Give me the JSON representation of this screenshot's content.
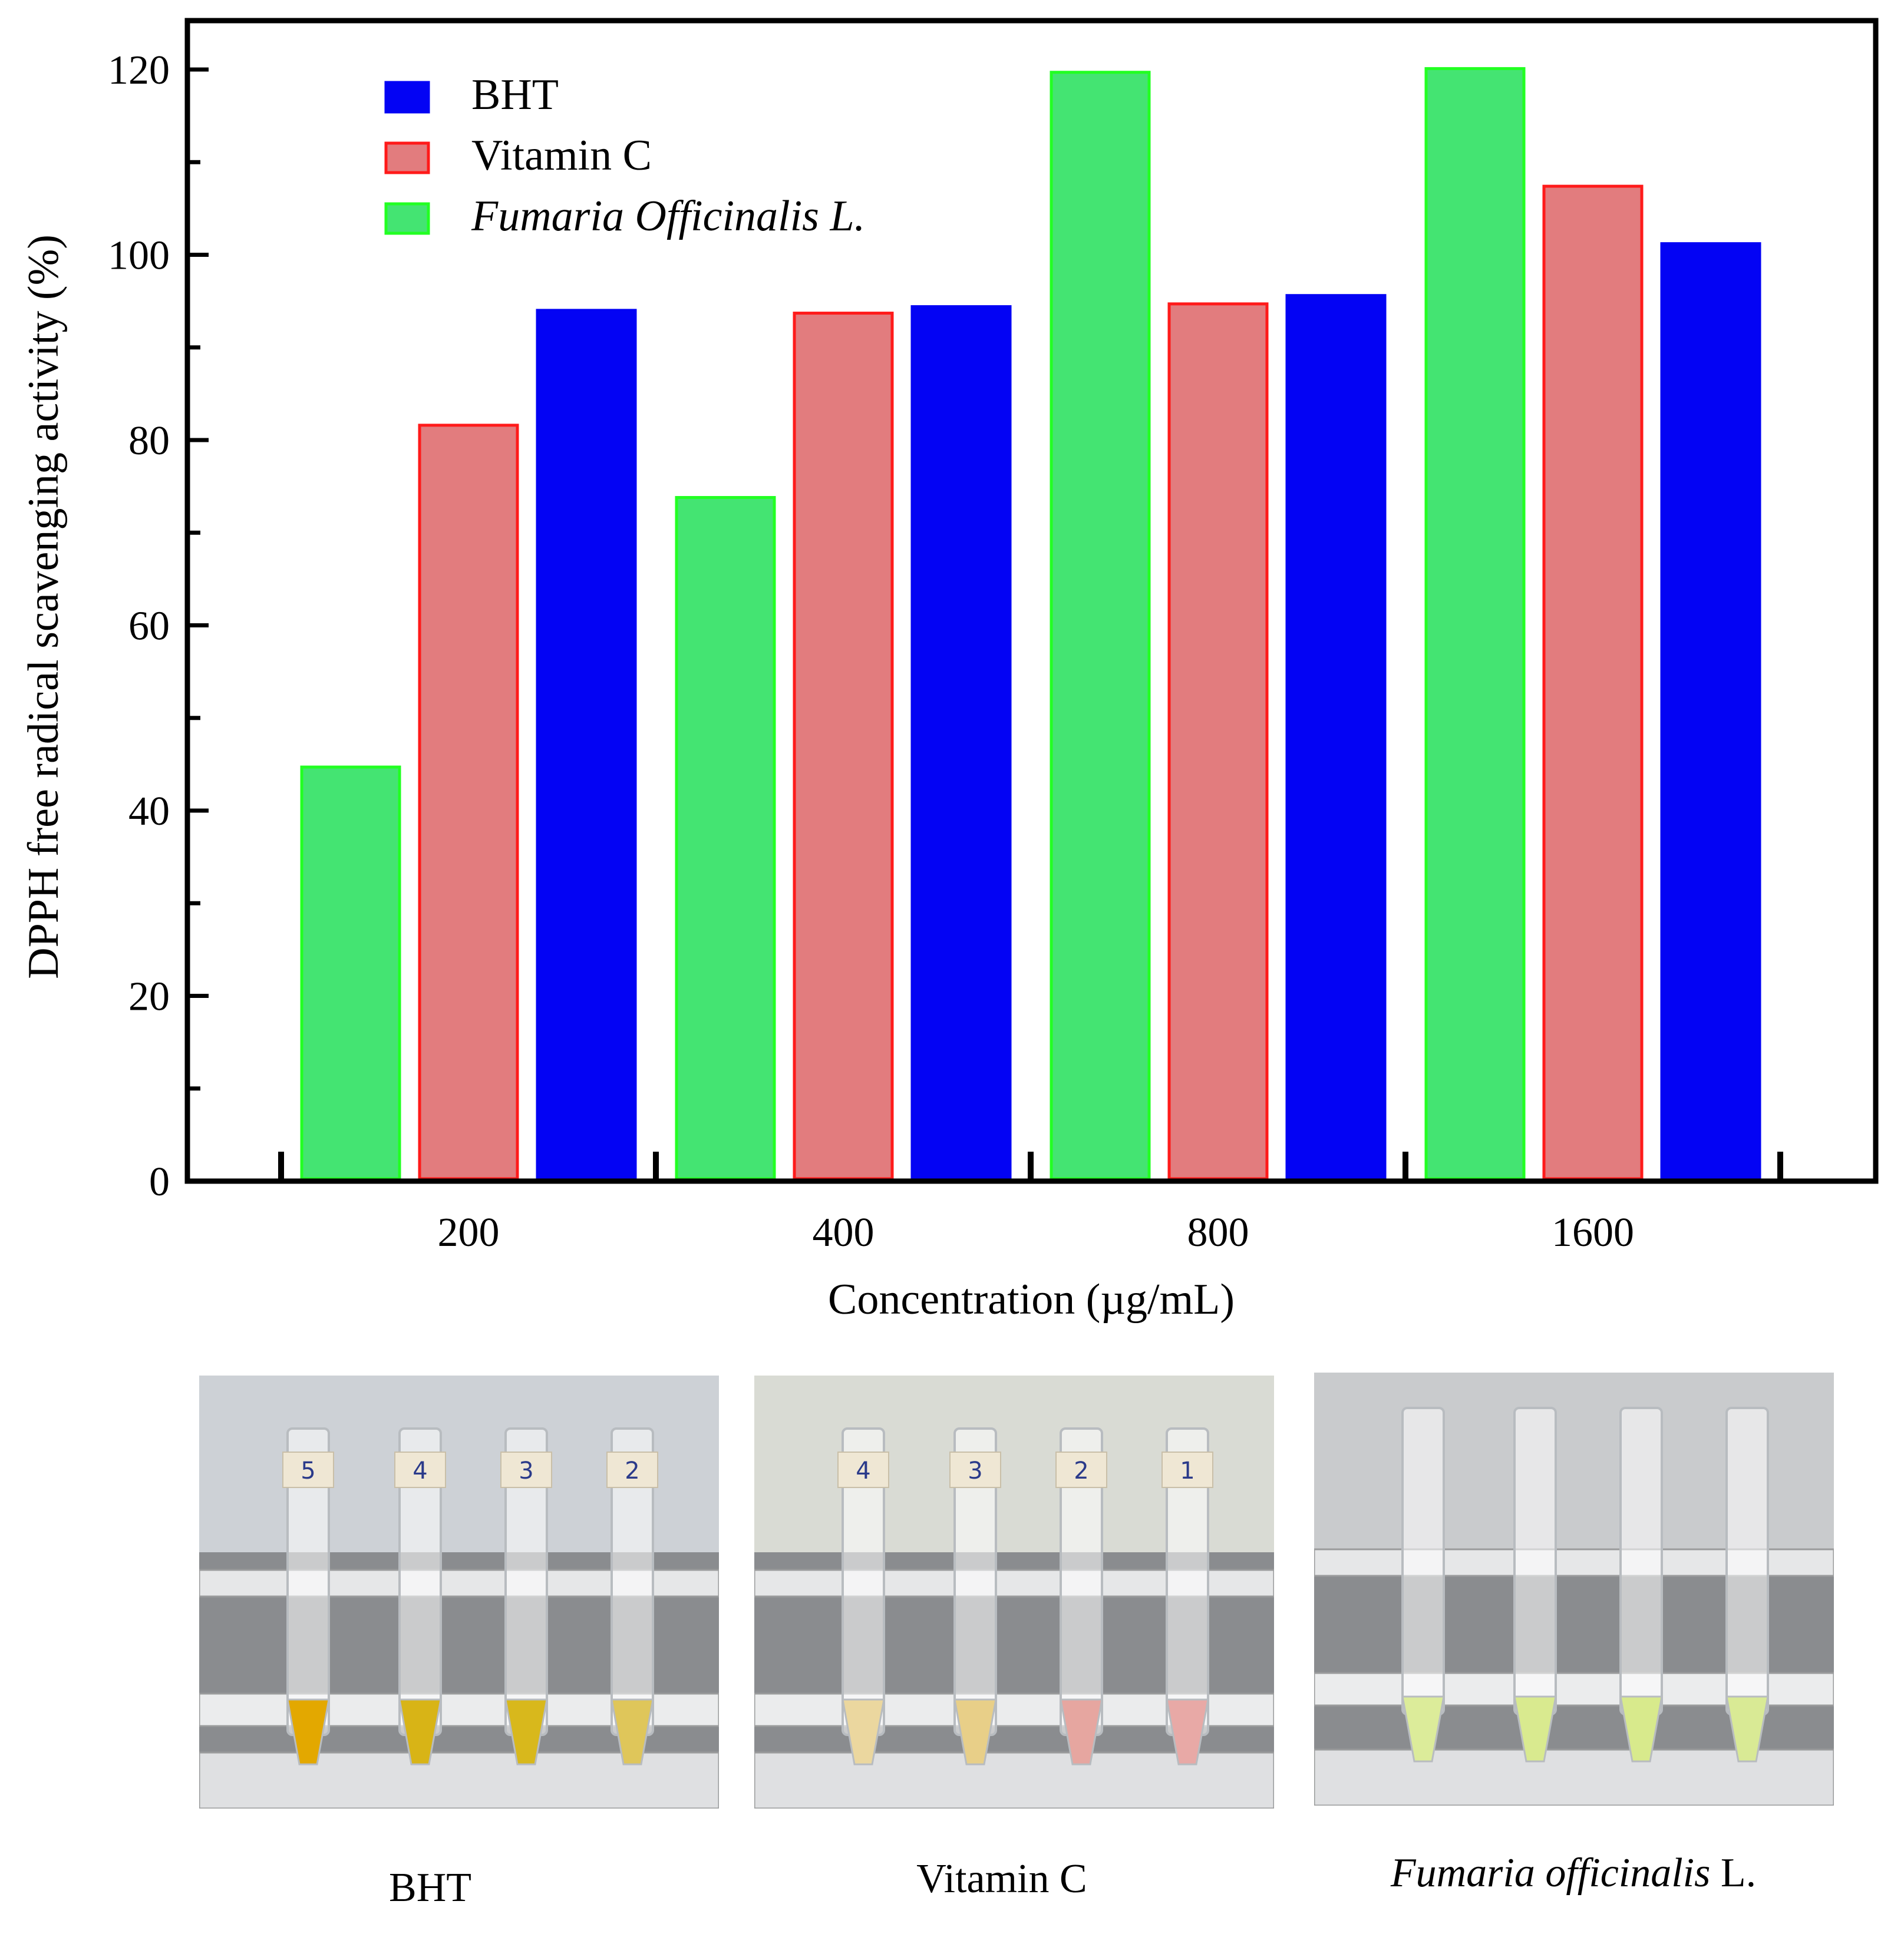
{
  "chart_data": {
    "type": "bar",
    "ylabel": "DPPH free radical scavenging activity (%)",
    "xlabel": "Concentration (µg/mL)",
    "categories": [
      "200",
      "400",
      "800",
      "1600"
    ],
    "ylim": [
      0,
      120
    ],
    "yticks": [
      "0",
      "20",
      "40",
      "60",
      "80",
      "100",
      "120"
    ],
    "legend_position": "top-left",
    "series": [
      {
        "name": "Fumaria Officinalis L.",
        "italic": true,
        "fill": "#44e472",
        "stroke": "#22ff22",
        "values": [
          44.7,
          73.8,
          119.7,
          120.1
        ]
      },
      {
        "name": "Vitamin C",
        "italic": false,
        "fill": "#e27c7e",
        "stroke": "#ff1a1a",
        "values": [
          81.6,
          93.7,
          94.7,
          107.4
        ]
      },
      {
        "name": "BHT",
        "italic": false,
        "fill": "#0303f4",
        "stroke": "#0303f4",
        "values": [
          94.0,
          94.4,
          95.6,
          101.2
        ]
      }
    ],
    "legend_order": [
      "BHT",
      "Vitamin C",
      "Fumaria Officinalis L."
    ]
  },
  "photos": [
    {
      "name": "BHT",
      "caption": "BHT",
      "tube_labels": [
        "5",
        "4",
        "3",
        "2"
      ],
      "liquid_colors": [
        "#e3a800",
        "#d8b416",
        "#d8b81c",
        "#dfc65a"
      ]
    },
    {
      "name": "Vitamin C",
      "caption": "Vitamin C",
      "tube_labels": [
        "4",
        "3",
        "2",
        "1"
      ],
      "liquid_colors": [
        "#ebd79f",
        "#e8cf88",
        "#e6a6a0",
        "#e8a9a6"
      ]
    },
    {
      "name": "Fumaria officinalis",
      "caption_italic": "Fumaria officinalis",
      "caption_suffix": " L.",
      "tube_labels": [],
      "liquid_colors": [
        "#dcec9a",
        "#d9ea8f",
        "#d8ea8c",
        "#d9ea95"
      ]
    }
  ]
}
